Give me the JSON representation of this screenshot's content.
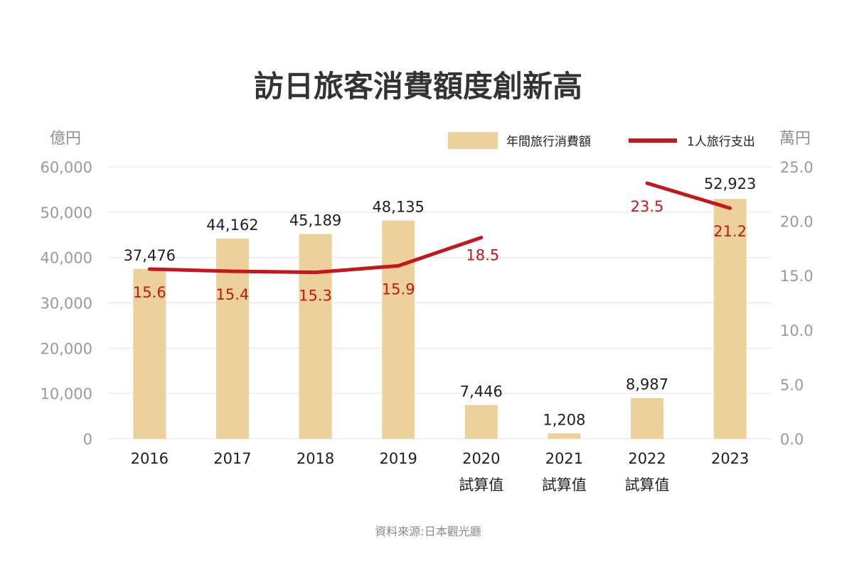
{
  "chart_data": {
    "type": "bar",
    "title": "訪日旅客消費額度創新高",
    "y_left_unit": "億円",
    "y_right_unit": "萬円",
    "categories": [
      "2016",
      "2017",
      "2018",
      "2019",
      "2020",
      "2021",
      "2022",
      "2023"
    ],
    "category_sublabels": [
      "",
      "",
      "",
      "",
      "試算值",
      "試算值",
      "試算值",
      ""
    ],
    "series": [
      {
        "name": "年間旅行消費額",
        "type": "bar",
        "axis": "left",
        "values": [
          37476,
          44162,
          45189,
          48135,
          7446,
          1208,
          8987,
          52923
        ],
        "labels": [
          "37,476",
          "44,162",
          "45,189",
          "48,135",
          "7,446",
          "1,208",
          "8,987",
          "52,923"
        ],
        "color": "#ecd19b"
      },
      {
        "name": "1人旅行支出",
        "type": "line",
        "axis": "right",
        "values": [
          15.6,
          15.4,
          15.3,
          15.9,
          18.5,
          null,
          23.5,
          21.2
        ],
        "labels": [
          "15.6",
          "15.4",
          "15.3",
          "15.9",
          "18.5",
          "",
          "23.5",
          "21.2"
        ],
        "color": "#c4161c"
      }
    ],
    "y_left": {
      "min": 0,
      "max": 60000,
      "ticks": [
        "0",
        "10,000",
        "20,000",
        "30,000",
        "40,000",
        "50,000",
        "60,000"
      ]
    },
    "y_right": {
      "min": 0,
      "max": 25,
      "ticks": [
        "0.0",
        "5.0",
        "10.0",
        "15.0",
        "20.0",
        "25.0"
      ]
    },
    "grid": true,
    "legend_position": "top-right",
    "source": "資料來源:日本觀光廳"
  }
}
